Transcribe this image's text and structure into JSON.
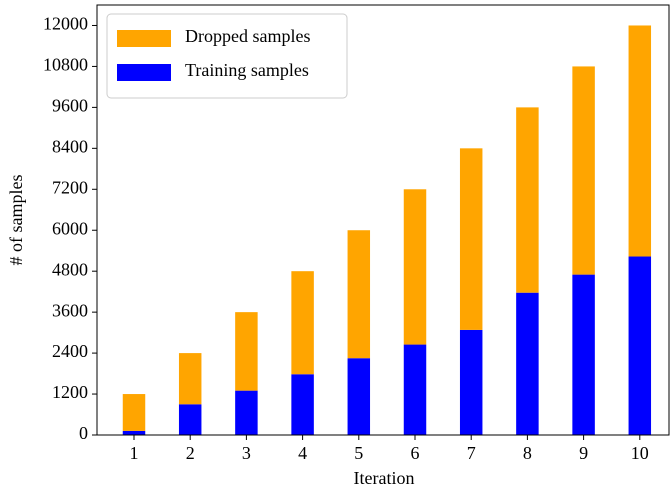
{
  "chart_data": {
    "type": "bar",
    "stacked": true,
    "xlabel": "Iteration",
    "ylabel": "# of samples",
    "categories": [
      "1",
      "2",
      "3",
      "4",
      "5",
      "6",
      "7",
      "8",
      "9",
      "10"
    ],
    "series": [
      {
        "name": "Training samples",
        "color": "#0000ff",
        "values": [
          120,
          900,
          1300,
          1780,
          2250,
          2650,
          3080,
          4170,
          4700,
          5230
        ]
      },
      {
        "name": "Dropped samples",
        "color": "#ffa500",
        "values": [
          1080,
          1500,
          2300,
          3020,
          3750,
          4550,
          5320,
          5430,
          6100,
          6770
        ]
      }
    ],
    "ylim": [
      0,
      12600
    ],
    "yticks": [
      0,
      1200,
      2400,
      3600,
      4800,
      6000,
      7200,
      8400,
      9600,
      10800,
      12000
    ],
    "legend": "upper left"
  }
}
